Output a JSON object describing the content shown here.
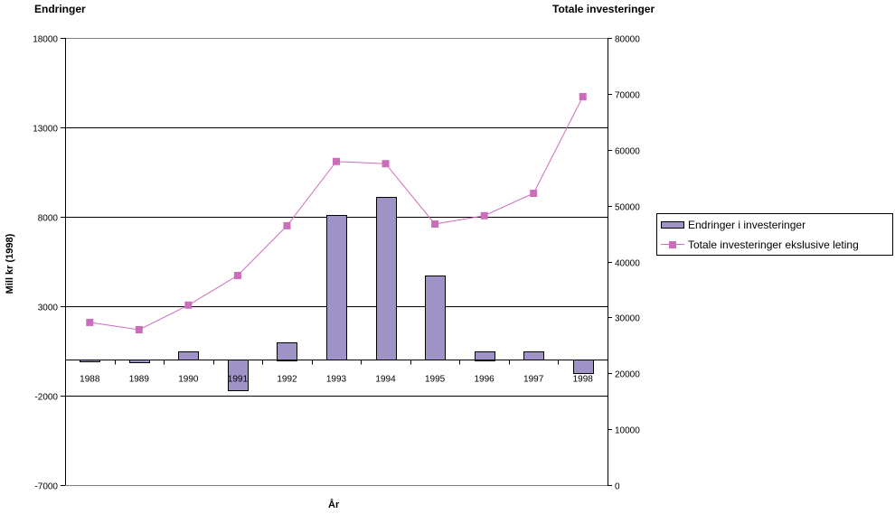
{
  "titles": {
    "left_axis_title": "Endringer",
    "right_axis_title": "Totale investeringer"
  },
  "axes": {
    "ylabel": "Mill kr (1998)",
    "xlabel": "År",
    "left_ticks": [
      "18000",
      "13000",
      "8000",
      "3000",
      "-2000",
      "-7000"
    ],
    "right_ticks": [
      "80000",
      "70000",
      "60000",
      "50000",
      "40000",
      "30000",
      "20000",
      "10000",
      "0"
    ]
  },
  "legend": {
    "bar_label": "Endringer i investeringer",
    "line_label": "Totale investeringer ekslusive leting"
  },
  "colors": {
    "bar": "#9f92c6",
    "line": "#cc6dbb"
  },
  "chart_data": {
    "type": "bar+line",
    "title": "",
    "categories": [
      "1988",
      "1989",
      "1990",
      "1991",
      "1992",
      "1993",
      "1994",
      "1995",
      "1996",
      "1997",
      "1998"
    ],
    "series": [
      {
        "name": "Endringer i investeringer",
        "type": "bar",
        "axis": "left",
        "values": [
          -100,
          -150,
          450,
          -1700,
          1000,
          8100,
          9100,
          4700,
          500,
          450,
          -750
        ]
      },
      {
        "name": "Totale investeringer ekslusive leting",
        "type": "line",
        "axis": "right",
        "values": [
          29100,
          27800,
          32200,
          37500,
          46400,
          57900,
          57500,
          46700,
          48200,
          52200,
          69500
        ]
      }
    ],
    "xlabel": "År",
    "ylabel": "Mill kr (1998)",
    "ylim_left": [
      -7000,
      18000
    ],
    "ylim_right": [
      0,
      80000
    ],
    "left_axis_title": "Endringer",
    "right_axis_title": "Totale investeringer",
    "grid": true,
    "legend_position": "right"
  }
}
